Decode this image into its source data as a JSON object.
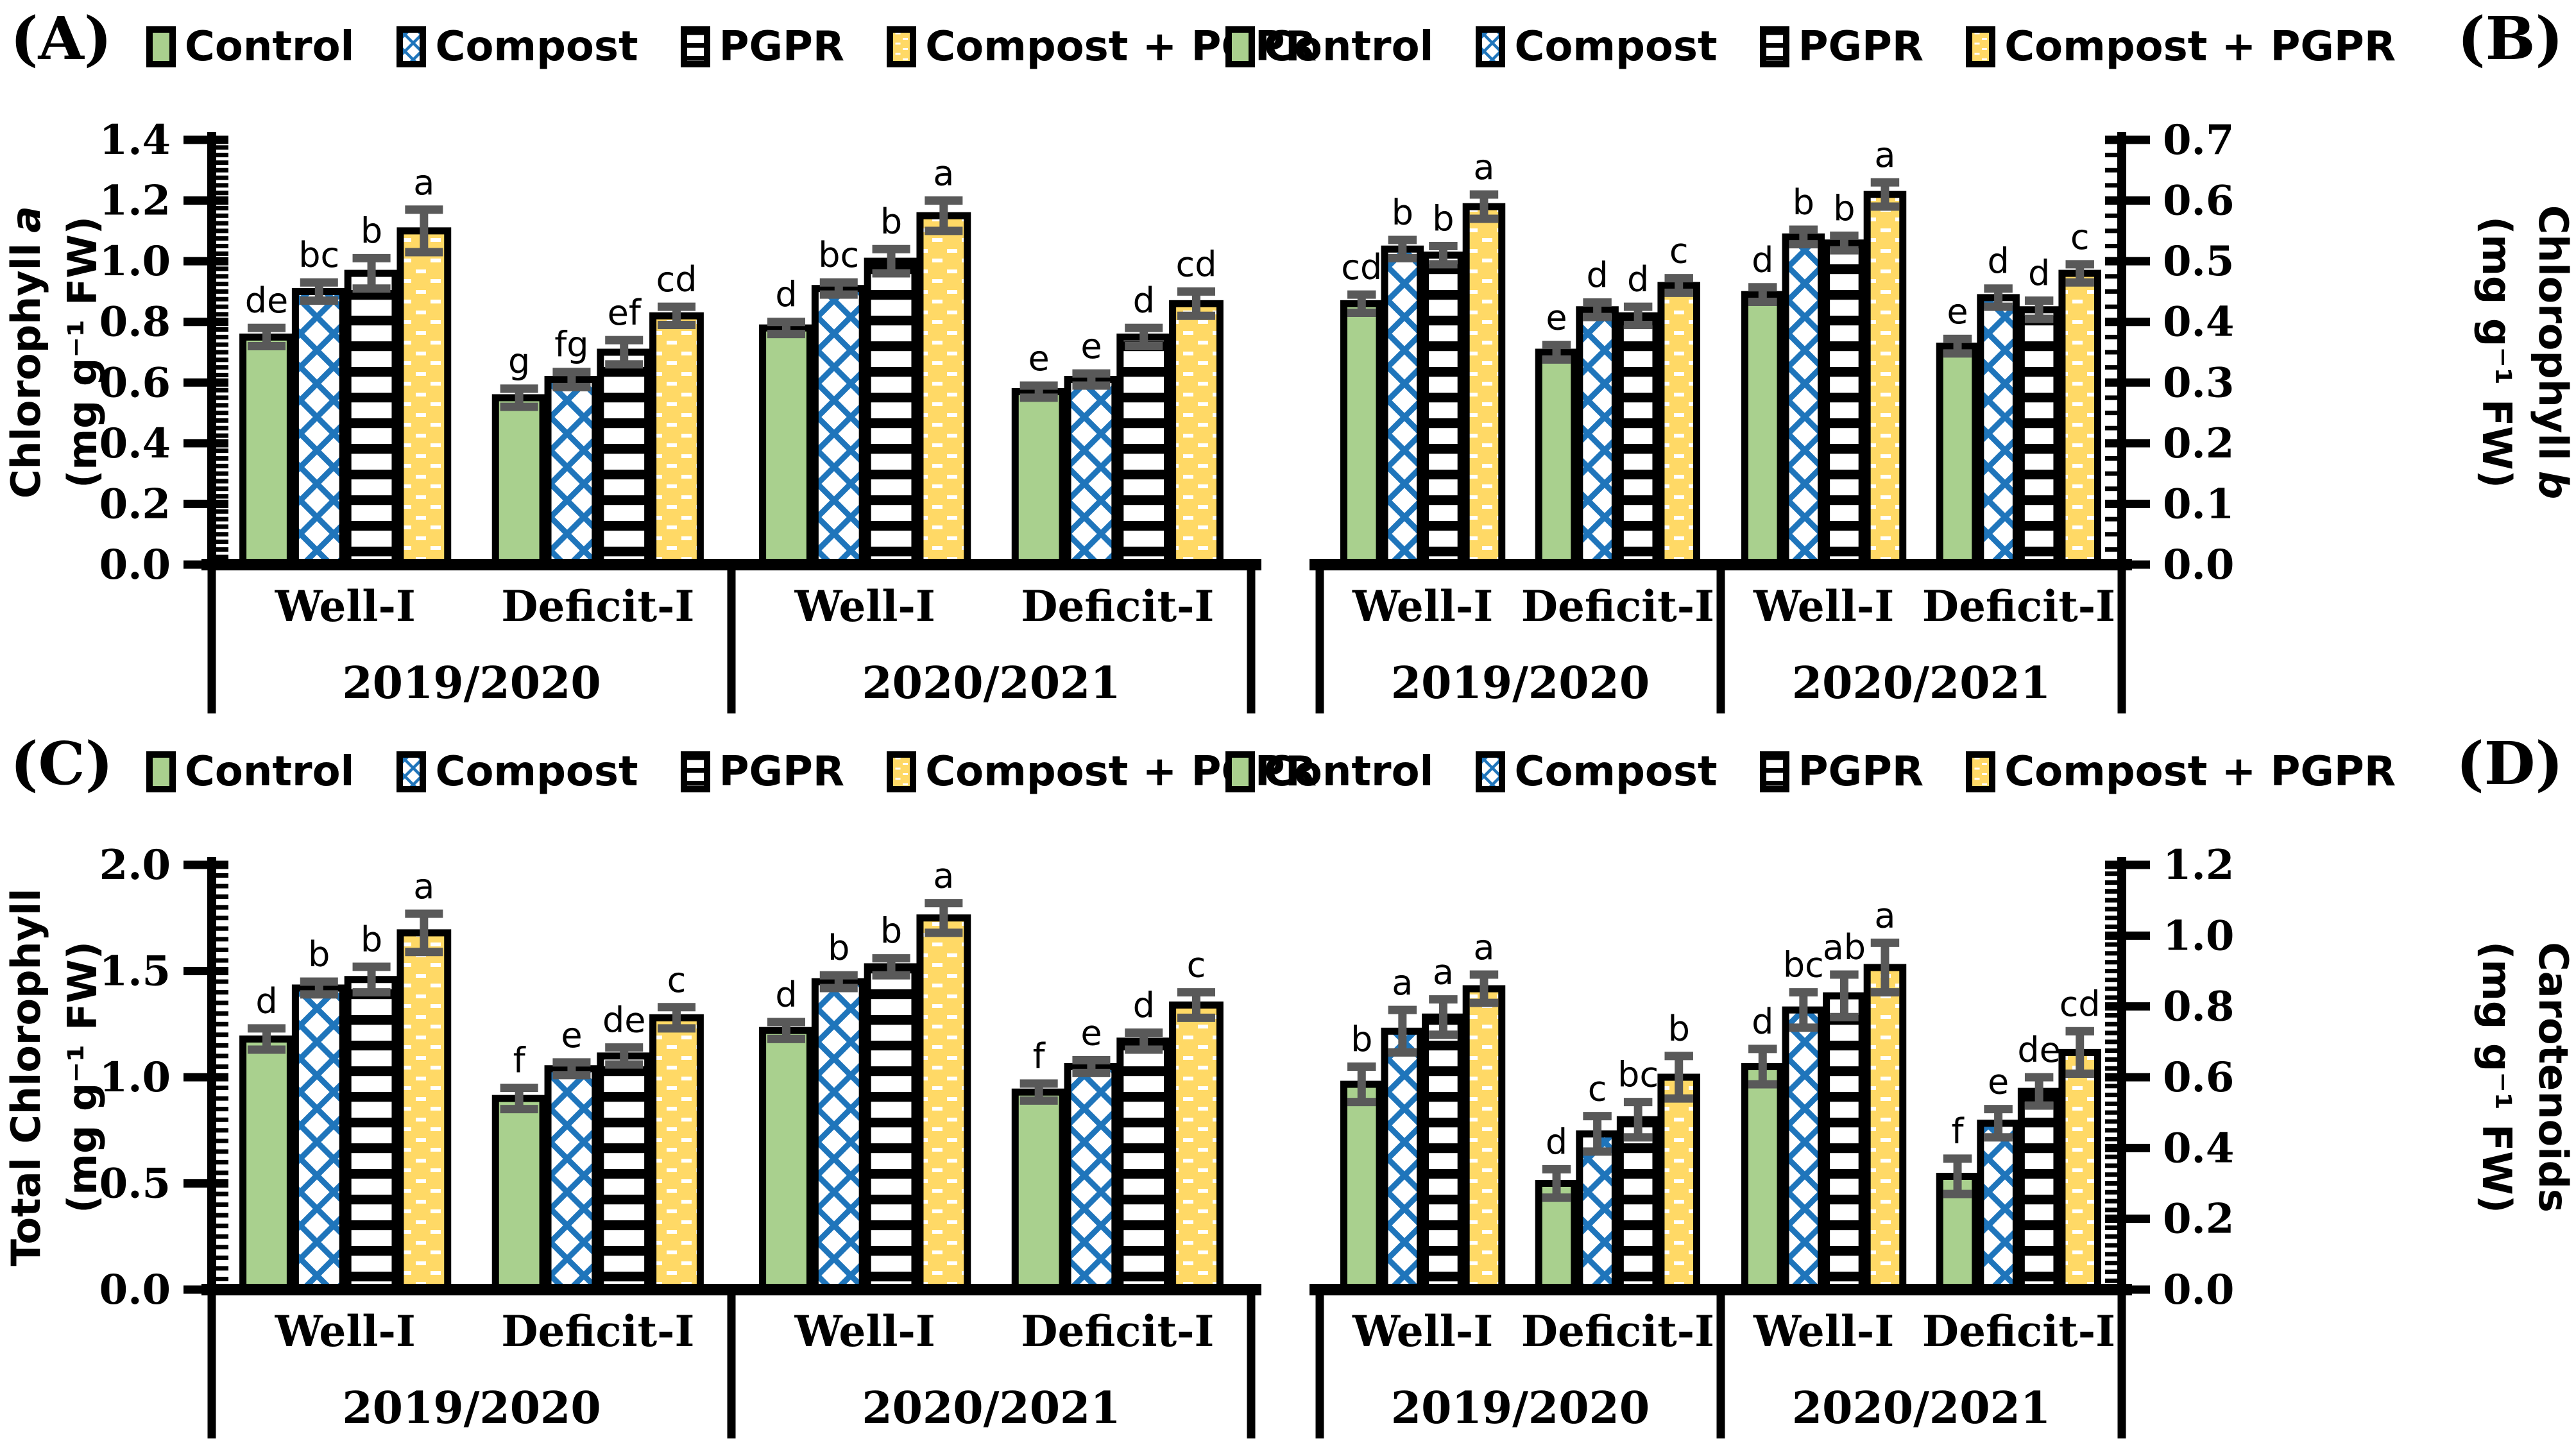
{
  "colors": {
    "control_green": "#a9d08e",
    "compost_blue": "#1f75bb",
    "pgpr_black": "#000000",
    "compost_pgpr_yellow": "#ffd966",
    "error_bar_gray": "#595959",
    "bar_border": "#000000"
  },
  "legend": {
    "position": "top",
    "items": [
      {
        "key": "control",
        "label": "Control"
      },
      {
        "key": "compost",
        "label": "Compost"
      },
      {
        "key": "pgpr",
        "label": "PGPR"
      },
      {
        "key": "compost_pgpr",
        "label": "Compost + PGPR"
      }
    ]
  },
  "chart_data": [
    {
      "id": "A",
      "label": "(A)",
      "type": "bar",
      "corner": "left",
      "axis_side": "left",
      "ylabel_main": "Chlorophyll",
      "ylabel_italic": "a",
      "units": "(mg g⁻¹ FW)",
      "ylim": [
        0,
        1.4
      ],
      "y_major": 0.2,
      "y_minor": 0.025,
      "grid": false,
      "years": [
        {
          "label": "2019/2020",
          "irrigation": [
            {
              "label": "Well-I",
              "bars": [
                {
                  "series": "Control",
                  "value": 0.75,
                  "err": 0.03,
                  "letter": "de"
                },
                {
                  "series": "Compost",
                  "value": 0.9,
                  "err": 0.03,
                  "letter": "bc"
                },
                {
                  "series": "PGPR",
                  "value": 0.96,
                  "err": 0.05,
                  "letter": "b"
                },
                {
                  "series": "Compost + PGPR",
                  "value": 1.1,
                  "err": 0.07,
                  "letter": "a"
                }
              ]
            },
            {
              "label": "Deficit-I",
              "bars": [
                {
                  "series": "Control",
                  "value": 0.55,
                  "err": 0.03,
                  "letter": "g"
                },
                {
                  "series": "Compost",
                  "value": 0.61,
                  "err": 0.025,
                  "letter": "fg"
                },
                {
                  "series": "PGPR",
                  "value": 0.7,
                  "err": 0.04,
                  "letter": "ef"
                },
                {
                  "series": "Compost + PGPR",
                  "value": 0.82,
                  "err": 0.03,
                  "letter": "cd"
                }
              ]
            }
          ]
        },
        {
          "label": "2020/2021",
          "irrigation": [
            {
              "label": "Well-I",
              "bars": [
                {
                  "series": "Control",
                  "value": 0.78,
                  "err": 0.02,
                  "letter": "d"
                },
                {
                  "series": "Compost",
                  "value": 0.91,
                  "err": 0.02,
                  "letter": "bc"
                },
                {
                  "series": "PGPR",
                  "value": 1.0,
                  "err": 0.04,
                  "letter": "b"
                },
                {
                  "series": "Compost + PGPR",
                  "value": 1.15,
                  "err": 0.05,
                  "letter": "a"
                }
              ]
            },
            {
              "label": "Deficit-I",
              "bars": [
                {
                  "series": "Control",
                  "value": 0.57,
                  "err": 0.02,
                  "letter": "e"
                },
                {
                  "series": "Compost",
                  "value": 0.61,
                  "err": 0.02,
                  "letter": "e"
                },
                {
                  "series": "PGPR",
                  "value": 0.75,
                  "err": 0.03,
                  "letter": "d"
                },
                {
                  "series": "Compost + PGPR",
                  "value": 0.86,
                  "err": 0.04,
                  "letter": "cd"
                }
              ]
            }
          ]
        }
      ]
    },
    {
      "id": "B",
      "label": "(B)",
      "type": "bar",
      "corner": "right",
      "axis_side": "right",
      "ylabel_main": "Chlorophyll",
      "ylabel_italic": "b",
      "units": "(mg g⁻¹ FW)",
      "ylim": [
        0,
        0.7
      ],
      "y_major": 0.1,
      "y_minor": 0.025,
      "grid": false,
      "years": [
        {
          "label": "2019/2020",
          "irrigation": [
            {
              "label": "Well-I",
              "bars": [
                {
                  "series": "Control",
                  "value": 0.43,
                  "err": 0.015,
                  "letter": "cd"
                },
                {
                  "series": "Compost",
                  "value": 0.52,
                  "err": 0.015,
                  "letter": "b"
                },
                {
                  "series": "PGPR",
                  "value": 0.51,
                  "err": 0.015,
                  "letter": "b"
                },
                {
                  "series": "Compost + PGPR",
                  "value": 0.59,
                  "err": 0.02,
                  "letter": "a"
                }
              ]
            },
            {
              "label": "Deficit-I",
              "bars": [
                {
                  "series": "Control",
                  "value": 0.35,
                  "err": 0.012,
                  "letter": "e"
                },
                {
                  "series": "Compost",
                  "value": 0.42,
                  "err": 0.012,
                  "letter": "d"
                },
                {
                  "series": "PGPR",
                  "value": 0.41,
                  "err": 0.015,
                  "letter": "d"
                },
                {
                  "series": "Compost + PGPR",
                  "value": 0.46,
                  "err": 0.012,
                  "letter": "c"
                }
              ]
            }
          ]
        },
        {
          "label": "2020/2021",
          "irrigation": [
            {
              "label": "Well-I",
              "bars": [
                {
                  "series": "Control",
                  "value": 0.445,
                  "err": 0.012,
                  "letter": "d"
                },
                {
                  "series": "Compost",
                  "value": 0.54,
                  "err": 0.012,
                  "letter": "b"
                },
                {
                  "series": "PGPR",
                  "value": 0.53,
                  "err": 0.012,
                  "letter": "b"
                },
                {
                  "series": "Compost + PGPR",
                  "value": 0.61,
                  "err": 0.02,
                  "letter": "a"
                }
              ]
            },
            {
              "label": "Deficit-I",
              "bars": [
                {
                  "series": "Control",
                  "value": 0.36,
                  "err": 0.012,
                  "letter": "e"
                },
                {
                  "series": "Compost",
                  "value": 0.44,
                  "err": 0.015,
                  "letter": "d"
                },
                {
                  "series": "PGPR",
                  "value": 0.42,
                  "err": 0.015,
                  "letter": "d"
                },
                {
                  "series": "Compost + PGPR",
                  "value": 0.48,
                  "err": 0.015,
                  "letter": "c"
                }
              ]
            }
          ]
        }
      ]
    },
    {
      "id": "C",
      "label": "(C)",
      "type": "bar",
      "corner": "left",
      "axis_side": "left",
      "ylabel_main": "Total Chlorophyll",
      "ylabel_italic": "",
      "units": "(mg g⁻¹ FW)",
      "ylim": [
        0,
        2.0
      ],
      "y_major": 0.5,
      "y_minor": 0.05,
      "grid": false,
      "years": [
        {
          "label": "2019/2020",
          "irrigation": [
            {
              "label": "Well-I",
              "bars": [
                {
                  "series": "Control",
                  "value": 1.18,
                  "err": 0.05,
                  "letter": "d"
                },
                {
                  "series": "Compost",
                  "value": 1.42,
                  "err": 0.03,
                  "letter": "b"
                },
                {
                  "series": "PGPR",
                  "value": 1.46,
                  "err": 0.06,
                  "letter": "b"
                },
                {
                  "series": "Compost + PGPR",
                  "value": 1.68,
                  "err": 0.09,
                  "letter": "a"
                }
              ]
            },
            {
              "label": "Deficit-I",
              "bars": [
                {
                  "series": "Control",
                  "value": 0.9,
                  "err": 0.05,
                  "letter": "f"
                },
                {
                  "series": "Compost",
                  "value": 1.04,
                  "err": 0.03,
                  "letter": "e"
                },
                {
                  "series": "PGPR",
                  "value": 1.1,
                  "err": 0.04,
                  "letter": "de"
                },
                {
                  "series": "Compost + PGPR",
                  "value": 1.28,
                  "err": 0.05,
                  "letter": "c"
                }
              ]
            }
          ]
        },
        {
          "label": "2020/2021",
          "irrigation": [
            {
              "label": "Well-I",
              "bars": [
                {
                  "series": "Control",
                  "value": 1.22,
                  "err": 0.04,
                  "letter": "d"
                },
                {
                  "series": "Compost",
                  "value": 1.45,
                  "err": 0.03,
                  "letter": "b"
                },
                {
                  "series": "PGPR",
                  "value": 1.52,
                  "err": 0.04,
                  "letter": "b"
                },
                {
                  "series": "Compost + PGPR",
                  "value": 1.75,
                  "err": 0.07,
                  "letter": "a"
                }
              ]
            },
            {
              "label": "Deficit-I",
              "bars": [
                {
                  "series": "Control",
                  "value": 0.93,
                  "err": 0.04,
                  "letter": "f"
                },
                {
                  "series": "Compost",
                  "value": 1.05,
                  "err": 0.03,
                  "letter": "e"
                },
                {
                  "series": "PGPR",
                  "value": 1.17,
                  "err": 0.04,
                  "letter": "d"
                },
                {
                  "series": "Compost + PGPR",
                  "value": 1.34,
                  "err": 0.06,
                  "letter": "c"
                }
              ]
            }
          ]
        }
      ]
    },
    {
      "id": "D",
      "label": "(D)",
      "type": "bar",
      "corner": "right",
      "axis_side": "right",
      "ylabel_main": "Carotenoids",
      "ylabel_italic": "",
      "units": "(mg g⁻¹ FW)",
      "ylim": [
        0,
        1.2
      ],
      "y_major": 0.2,
      "y_minor": 0.025,
      "grid": false,
      "years": [
        {
          "label": "2019/2020",
          "irrigation": [
            {
              "label": "Well-I",
              "bars": [
                {
                  "series": "Control",
                  "value": 0.58,
                  "err": 0.05,
                  "letter": "b"
                },
                {
                  "series": "Compost",
                  "value": 0.73,
                  "err": 0.06,
                  "letter": "a"
                },
                {
                  "series": "PGPR",
                  "value": 0.77,
                  "err": 0.05,
                  "letter": "a"
                },
                {
                  "series": "Compost + PGPR",
                  "value": 0.85,
                  "err": 0.04,
                  "letter": "a"
                }
              ]
            },
            {
              "label": "Deficit-I",
              "bars": [
                {
                  "series": "Control",
                  "value": 0.3,
                  "err": 0.04,
                  "letter": "d"
                },
                {
                  "series": "Compost",
                  "value": 0.44,
                  "err": 0.05,
                  "letter": "c"
                },
                {
                  "series": "PGPR",
                  "value": 0.48,
                  "err": 0.05,
                  "letter": "bc"
                },
                {
                  "series": "Compost + PGPR",
                  "value": 0.6,
                  "err": 0.06,
                  "letter": "b"
                }
              ]
            }
          ]
        },
        {
          "label": "2020/2021",
          "irrigation": [
            {
              "label": "Well-I",
              "bars": [
                {
                  "series": "Control",
                  "value": 0.63,
                  "err": 0.05,
                  "letter": "d"
                },
                {
                  "series": "Compost",
                  "value": 0.79,
                  "err": 0.05,
                  "letter": "bc"
                },
                {
                  "series": "PGPR",
                  "value": 0.83,
                  "err": 0.06,
                  "letter": "ab"
                },
                {
                  "series": "Compost + PGPR",
                  "value": 0.91,
                  "err": 0.07,
                  "letter": "a"
                }
              ]
            },
            {
              "label": "Deficit-I",
              "bars": [
                {
                  "series": "Control",
                  "value": 0.32,
                  "err": 0.05,
                  "letter": "f"
                },
                {
                  "series": "Compost",
                  "value": 0.47,
                  "err": 0.04,
                  "letter": "e"
                },
                {
                  "series": "PGPR",
                  "value": 0.56,
                  "err": 0.04,
                  "letter": "de"
                },
                {
                  "series": "Compost + PGPR",
                  "value": 0.67,
                  "err": 0.06,
                  "letter": "cd"
                }
              ]
            }
          ]
        }
      ]
    }
  ]
}
